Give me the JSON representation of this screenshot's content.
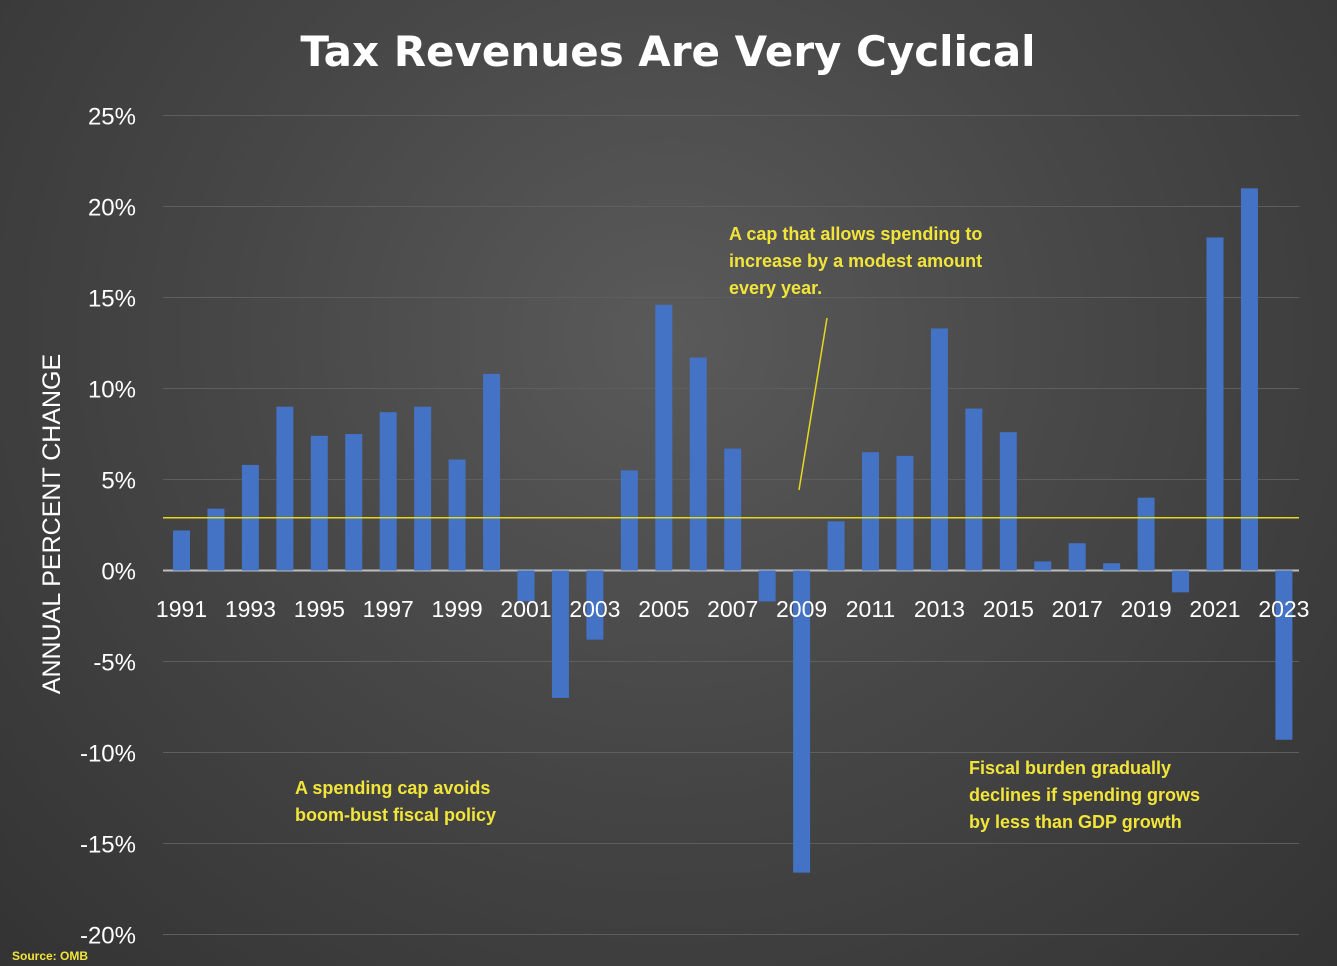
{
  "chart_data": {
    "type": "bar",
    "title": "Tax Revenues Are Very Cyclical",
    "ylabel": "ANNUAL PERCENT CHANGE",
    "xlabel": "",
    "ylim": [
      -20,
      25
    ],
    "y_ticks": [
      25,
      20,
      15,
      10,
      5,
      0,
      -5,
      -10,
      -15,
      -20
    ],
    "y_tick_format": "%",
    "grid": true,
    "categories": [
      1991,
      1992,
      1993,
      1994,
      1995,
      1996,
      1997,
      1998,
      1999,
      2000,
      2001,
      2002,
      2003,
      2004,
      2005,
      2006,
      2007,
      2008,
      2009,
      2010,
      2011,
      2012,
      2013,
      2014,
      2015,
      2016,
      2017,
      2018,
      2019,
      2020,
      2021,
      2022,
      2023
    ],
    "x_tick_labels": [
      "1991",
      "1993",
      "1995",
      "1997",
      "1999",
      "2001",
      "2003",
      "2005",
      "2007",
      "2009",
      "2011",
      "2013",
      "2015",
      "2017",
      "2019",
      "2021",
      "2023"
    ],
    "values": [
      2.2,
      3.4,
      5.8,
      9.0,
      7.4,
      7.5,
      8.7,
      9.0,
      6.1,
      10.8,
      -1.7,
      -7.0,
      -3.8,
      5.5,
      14.6,
      11.7,
      6.7,
      -1.7,
      -16.6,
      2.7,
      6.5,
      6.3,
      13.3,
      8.9,
      7.6,
      0.5,
      1.5,
      0.4,
      4.0,
      -1.2,
      18.3,
      21.0,
      -9.3
    ],
    "bar_color": "#4472c4",
    "reference_line": {
      "y": 2.9,
      "color": "#e6d81e"
    },
    "annotations": [
      {
        "lines": [
          "A cap that allows spending to",
          "increase by a modest amount",
          "every year."
        ]
      },
      {
        "lines": [
          "A spending cap avoids",
          "boom-bust fiscal policy"
        ]
      },
      {
        "lines": [
          "Fiscal burden gradually",
          "declines if spending grows",
          "by less than GDP growth"
        ]
      }
    ],
    "source": "Source: OMB"
  }
}
